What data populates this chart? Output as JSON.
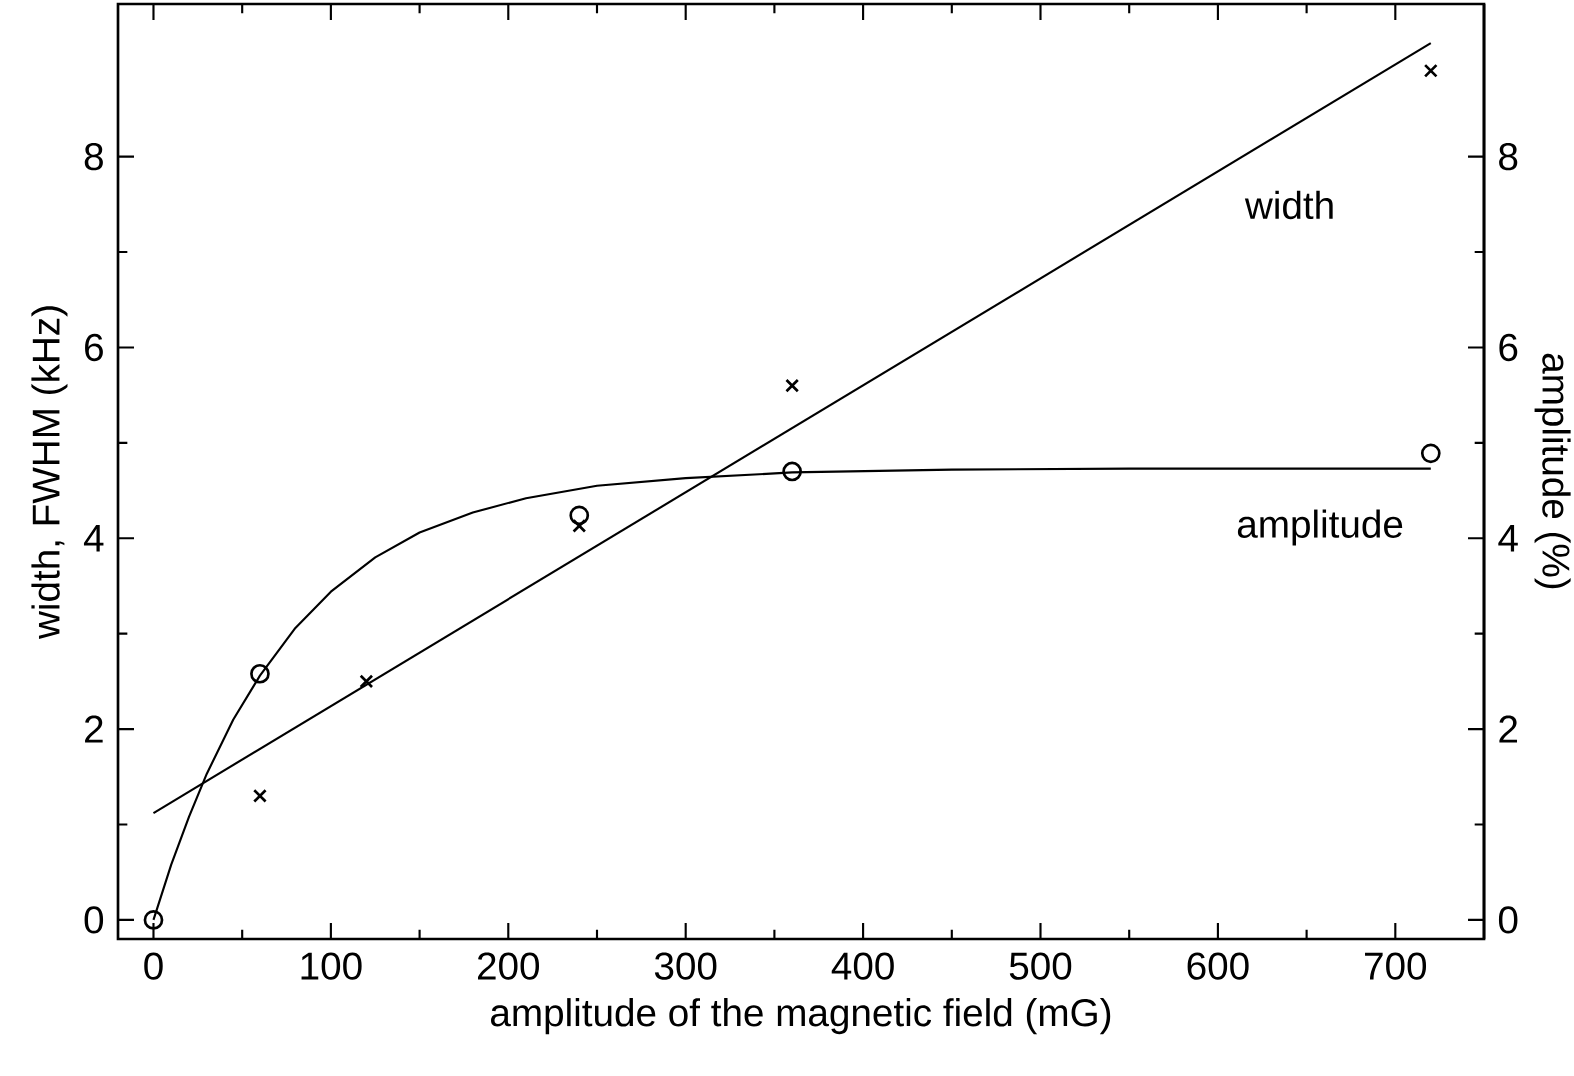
{
  "chart_data": {
    "type": "scatter",
    "xlabel": "amplitude of the magnetic field (mG)",
    "ylabel": "width, FWHM (kHz)",
    "y2label": "amplitude (%)",
    "xlim": [
      -20,
      750
    ],
    "ylim": [
      -0.2,
      9.6
    ],
    "y2lim": [
      -0.2,
      9.6
    ],
    "xticks": [
      0,
      100,
      200,
      300,
      400,
      500,
      600,
      700
    ],
    "yticks": [
      0,
      2,
      4,
      6,
      8
    ],
    "y2ticks": [
      0,
      2,
      4,
      6,
      8
    ],
    "series": [
      {
        "marker": "cross",
        "color": "#000000",
        "x": [
          60,
          120,
          240,
          360,
          720
        ],
        "values": [
          1.3,
          2.5,
          4.13,
          5.6,
          8.9
        ]
      },
      {
        "name": "width",
        "type": "line",
        "marker": "none",
        "color": "#000000",
        "x": [
          0,
          720
        ],
        "values": [
          1.12,
          9.19
        ]
      },
      {
        "axis": "y2",
        "marker": "circle",
        "color": "#000000",
        "x": [
          0,
          60,
          240,
          360,
          720
        ],
        "values": [
          0,
          2.58,
          4.24,
          4.7,
          4.89
        ]
      },
      {
        "name": "amplitude",
        "type": "line",
        "axis": "y2",
        "marker": "none",
        "color": "#000000",
        "x": [
          0,
          10,
          20,
          30,
          45,
          60,
          80,
          100,
          125,
          150,
          180,
          210,
          250,
          300,
          360,
          450,
          550,
          720
        ],
        "values": [
          0,
          0.58,
          1.08,
          1.53,
          2.1,
          2.56,
          3.06,
          3.44,
          3.8,
          4.06,
          4.27,
          4.42,
          4.55,
          4.63,
          4.69,
          4.72,
          4.73,
          4.73
        ]
      }
    ]
  }
}
